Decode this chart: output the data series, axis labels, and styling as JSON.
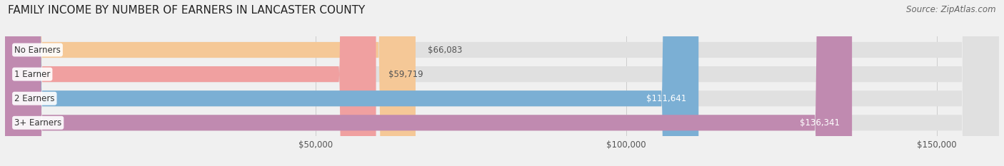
{
  "title": "FAMILY INCOME BY NUMBER OF EARNERS IN LANCASTER COUNTY",
  "source": "Source: ZipAtlas.com",
  "categories": [
    "No Earners",
    "1 Earner",
    "2 Earners",
    "3+ Earners"
  ],
  "values": [
    66083,
    59719,
    111641,
    136341
  ],
  "bar_colors": [
    "#f5c897",
    "#f0a0a0",
    "#7bafd4",
    "#c08ab0"
  ],
  "value_labels": [
    "$66,083",
    "$59,719",
    "$111,641",
    "$136,341"
  ],
  "xlim": [
    0,
    160000
  ],
  "xticks": [
    50000,
    100000,
    150000
  ],
  "xtick_labels": [
    "$50,000",
    "$100,000",
    "$150,000"
  ],
  "background_color": "#f0f0f0",
  "bar_bg_color": "#e0e0e0",
  "title_fontsize": 11,
  "label_fontsize": 8.5,
  "value_fontsize": 8.5,
  "source_fontsize": 8.5
}
